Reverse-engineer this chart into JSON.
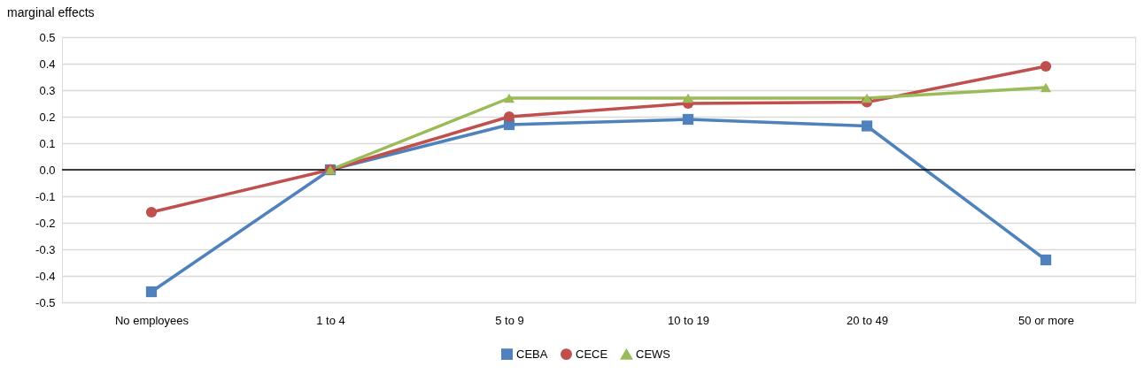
{
  "chart_data": {
    "type": "line",
    "ylabel": "marginal effects",
    "categories": [
      "No employees",
      "1 to 4",
      "5 to 9",
      "10 to 19",
      "20 to 49",
      "50 or more"
    ],
    "series": [
      {
        "name": "CEBA",
        "color": "#4f81bd",
        "marker": "square",
        "values": [
          -0.46,
          0.0,
          0.17,
          0.19,
          0.165,
          -0.34
        ]
      },
      {
        "name": "CECE",
        "color": "#c0504d",
        "marker": "circle",
        "values": [
          -0.16,
          0.0,
          0.2,
          0.25,
          0.255,
          0.39
        ]
      },
      {
        "name": "CEWS",
        "color": "#9bbb59",
        "marker": "triangle",
        "values": [
          null,
          0.0,
          0.27,
          0.27,
          0.27,
          0.31
        ]
      }
    ],
    "ylim": [
      -0.5,
      0.5
    ],
    "yticks": [
      -0.5,
      -0.4,
      -0.3,
      -0.2,
      -0.1,
      {
        "value": 0,
        "label": "0.0"
      },
      0.1,
      0.2,
      0.3,
      0.4,
      0.5
    ],
    "ref_lines": [
      {
        "axis": "y",
        "value": 0,
        "color": "#000000"
      }
    ],
    "grid": "y",
    "legend": "bottom",
    "line_style": "solid"
  }
}
